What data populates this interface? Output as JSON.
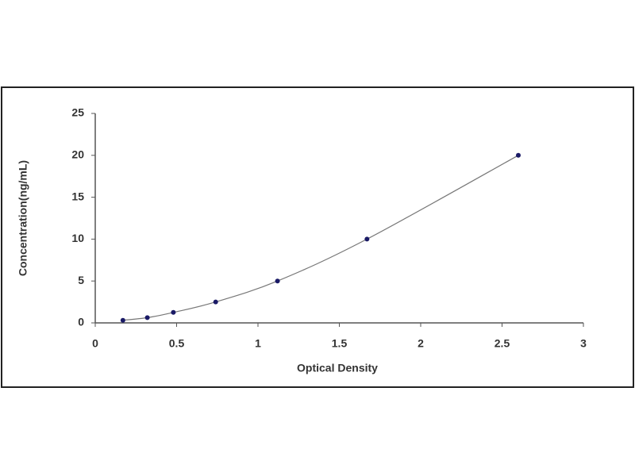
{
  "chart_data": {
    "type": "scatter",
    "x_label": "Optical Density",
    "y_label": "Concentration(ng/mL)",
    "series": [
      {
        "x": [
          0.17,
          0.32,
          0.48,
          0.74,
          1.12,
          1.67,
          2.6
        ],
        "values": [
          0.312,
          0.625,
          1.25,
          2.5,
          5,
          10,
          20
        ],
        "color": "#1a1a66",
        "line_color": "#777777"
      }
    ],
    "xlim": [
      0,
      3
    ],
    "ylim": [
      0,
      25
    ],
    "xticks": [
      0,
      0.5,
      1,
      1.5,
      2,
      2.5,
      3
    ],
    "yticks": [
      0,
      5,
      10,
      15,
      20,
      25
    ],
    "grid": false
  }
}
